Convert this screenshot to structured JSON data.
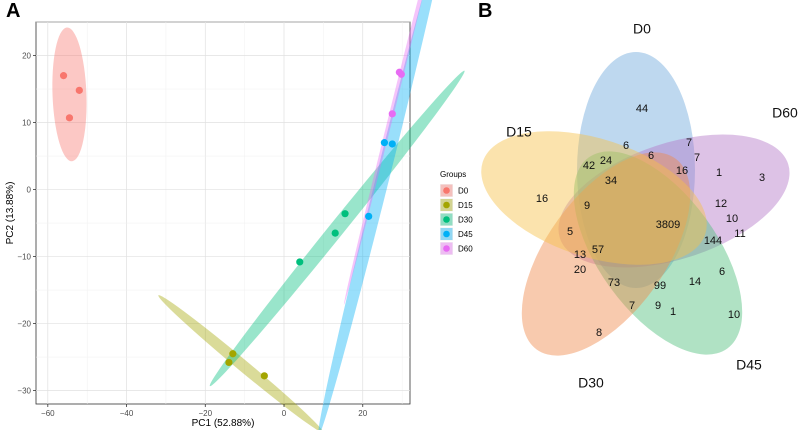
{
  "panels": {
    "a_label": "A",
    "b_label": "B"
  },
  "chart_data": [
    {
      "type": "scatter",
      "title": "",
      "xlabel": "PC1 (52.88%)",
      "ylabel": "PC2 (13.88%)",
      "xlim": [
        -63,
        32
      ],
      "ylim": [
        -32,
        25
      ],
      "xticks": [
        -60,
        -40,
        -20,
        0,
        20
      ],
      "yticks": [
        -30,
        -20,
        -10,
        0,
        10,
        20
      ],
      "grid": true,
      "legend": {
        "title": "Groups",
        "position": "right"
      },
      "series": [
        {
          "name": "D0",
          "color": "#F8766D",
          "points": [
            [
              -56,
              17
            ],
            [
              -52,
              14.8
            ],
            [
              -54.5,
              10.7
            ]
          ],
          "ellipse": {
            "center": [
              -54.5,
              14.2
            ],
            "rx": 10,
            "ry": 4.3,
            "angle_deg": -86
          }
        },
        {
          "name": "D15",
          "color": "#A3A500",
          "points": [
            [
              -13,
              -24.5
            ],
            [
              -14,
              -25.8
            ],
            [
              -5,
              -27.8
            ]
          ],
          "ellipse": {
            "center": [
              -11,
              -26
            ],
            "rx": 23.3,
            "ry": 1.0,
            "angle_deg": -26
          }
        },
        {
          "name": "D30",
          "color": "#00BF7D",
          "points": [
            [
              4,
              -10.8
            ],
            [
              13,
              -6.5
            ],
            [
              15.5,
              -3.6
            ]
          ],
          "ellipse": {
            "center": [
              13.5,
              -5.8
            ],
            "rx": 40,
            "ry": 1.45,
            "angle_deg": 36
          }
        },
        {
          "name": "D45",
          "color": "#00B0F6",
          "points": [
            [
              21.5,
              -4
            ],
            [
              25.5,
              7
            ],
            [
              27.5,
              6.8
            ]
          ],
          "ellipse": {
            "center": [
              25.5,
              2.8
            ],
            "rx": 43,
            "ry": 1.6,
            "angle_deg": 67
          }
        },
        {
          "name": "D60",
          "color": "#E76BF3",
          "points": [
            [
              29.3,
              17.5
            ],
            [
              29.8,
              17.2
            ],
            [
              27.5,
              11.3
            ]
          ],
          "ellipse": {
            "center": [
              28.5,
              14.1
            ],
            "rx": 34,
            "ry": 0.55,
            "angle_deg": 67
          }
        }
      ]
    },
    {
      "type": "venn",
      "sets": [
        {
          "name": "D0",
          "color": "#6FA8DC"
        },
        {
          "name": "D60",
          "color": "#B478C8"
        },
        {
          "name": "D45",
          "color": "#4FBF7D"
        },
        {
          "name": "D30",
          "color": "#F08A4B"
        },
        {
          "name": "D15",
          "color": "#F6C24A"
        }
      ],
      "region_counts": [
        "44",
        "6",
        "6",
        "7",
        "7",
        "16",
        "1",
        "3",
        "42",
        "24",
        "34",
        "16",
        "9",
        "5",
        "3809",
        "12",
        "10",
        "11",
        "144",
        "13",
        "57",
        "20",
        "73",
        "99",
        "14",
        "6",
        "7",
        "9",
        "1",
        "10",
        "8"
      ]
    }
  ]
}
